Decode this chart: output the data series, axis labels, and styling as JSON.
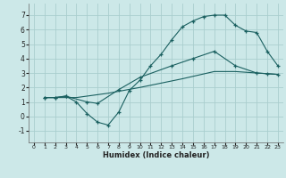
{
  "background_color": "#cce8e8",
  "grid_color": "#aacece",
  "line_color": "#1a6060",
  "xlabel": "Humidex (Indice chaleur)",
  "xlim": [
    -0.5,
    23.5
  ],
  "ylim": [
    -1.8,
    7.8
  ],
  "xticks": [
    0,
    1,
    2,
    3,
    4,
    5,
    6,
    7,
    8,
    9,
    10,
    11,
    12,
    13,
    14,
    15,
    16,
    17,
    18,
    19,
    20,
    21,
    22,
    23
  ],
  "yticks": [
    -1,
    0,
    1,
    2,
    3,
    4,
    5,
    6,
    7
  ],
  "line1_x": [
    1,
    2,
    3,
    4,
    5,
    6,
    7,
    8,
    9,
    10,
    11,
    12,
    13,
    14,
    15,
    16,
    17,
    18,
    19,
    20,
    21,
    22,
    23
  ],
  "line1_y": [
    1.3,
    1.3,
    1.4,
    1.0,
    0.2,
    -0.4,
    -0.6,
    0.3,
    1.8,
    2.5,
    3.5,
    4.3,
    5.3,
    6.2,
    6.6,
    6.9,
    7.0,
    7.0,
    6.3,
    5.9,
    5.8,
    4.5,
    3.5
  ],
  "line2_x": [
    1,
    2,
    3,
    5,
    6,
    8,
    10,
    13,
    15,
    17,
    19,
    21,
    22,
    23
  ],
  "line2_y": [
    1.3,
    1.3,
    1.4,
    1.0,
    0.9,
    1.85,
    2.7,
    3.5,
    4.0,
    4.5,
    3.5,
    3.0,
    2.95,
    2.9
  ],
  "line3_x": [
    1,
    4,
    7,
    10,
    14,
    17,
    19,
    22,
    23
  ],
  "line3_y": [
    1.3,
    1.3,
    1.6,
    2.0,
    2.6,
    3.1,
    3.1,
    2.95,
    2.9
  ]
}
